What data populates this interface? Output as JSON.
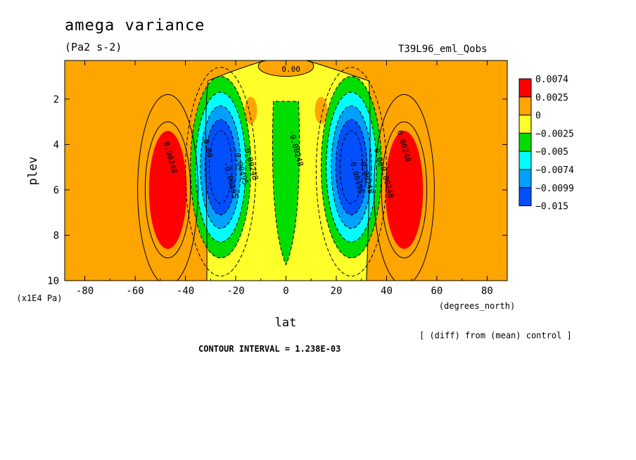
{
  "header": {
    "title": "amega variance",
    "units": "(Pa2 s-2)",
    "run_name": "T39L96_eml_Qobs"
  },
  "footer": {
    "diff_note": "[ (diff) from (mean) control ]",
    "contour_interval": "CONTOUR INTERVAL = 1.238E-03"
  },
  "chart_data": {
    "type": "heatmap",
    "title": "amega variance",
    "subtitle": "(Pa2 s-2)",
    "xlabel": "lat",
    "x_unit": "(degrees_north)",
    "ylabel": "plev",
    "y_unit": "(x1E4 Pa)",
    "xlim": [
      -88,
      88
    ],
    "ylim": [
      10,
      0.3
    ],
    "x_ticks": [
      -80,
      -60,
      -40,
      -20,
      0,
      20,
      40,
      60,
      80
    ],
    "y_ticks": [
      2,
      4,
      6,
      8,
      10
    ],
    "legend": {
      "placement": "right",
      "labels": [
        "0.0074",
        "0.0025",
        "0",
        "-0.0025",
        "-0.005",
        "-0.0074",
        "-0.0099",
        "-0.015"
      ],
      "colors": [
        "#ff0000",
        "#ffa500",
        "#ffff2a",
        "#00dd00",
        "#00ffff",
        "#00a0ff",
        "#0050ff"
      ]
    },
    "regions": [
      {
        "name": "background",
        "value_range": "0 to 0.0025",
        "color": "#ffa500"
      },
      {
        "name": "midlatitude-band",
        "value_range": "-0.0025 to 0",
        "color": "#ffff2a"
      },
      {
        "name": "sh-positive-max",
        "center": [
          -47,
          6
        ],
        "value_range": "> 0.0025",
        "color": "#ff0000"
      },
      {
        "name": "nh-positive-max",
        "center": [
          47,
          6
        ],
        "value_range": "> 0.0025",
        "color": "#ff0000"
      },
      {
        "name": "sh-negative-min",
        "center": [
          -26,
          5
        ],
        "value_range": "< -0.0099",
        "color": "#0050ff"
      },
      {
        "name": "nh-negative-min",
        "center": [
          26,
          5
        ],
        "value_range": "< -0.0099",
        "color": "#0050ff"
      },
      {
        "name": "equatorial-negative",
        "center": [
          0,
          5
        ],
        "value_range": "-0.005 to -0.0025",
        "color": "#00dd00"
      }
    ],
    "contour_labels": [
      {
        "text": "0.00",
        "lat": 2,
        "plev": 0.8
      },
      {
        "text": "-0.00248",
        "lat": 3,
        "plev": 4.2
      },
      {
        "text": "0.00",
        "lat": -32,
        "plev": 4.2
      },
      {
        "text": "0.00248",
        "lat": -47,
        "plev": 4.6
      },
      {
        "text": "-0.00495",
        "lat": -19,
        "plev": 5.0
      },
      {
        "text": "-0.00248",
        "lat": -15,
        "plev": 4.8
      },
      {
        "text": "-0.00495",
        "lat": -23,
        "plev": 5.6
      },
      {
        "text": "0.00248",
        "lat": 46,
        "plev": 4.1
      },
      {
        "text": "0.00",
        "lat": 36,
        "plev": 4.6
      },
      {
        "text": "-0.00248",
        "lat": 31,
        "plev": 5.4
      },
      {
        "text": "-0.00495",
        "lat": 27,
        "plev": 5.4
      },
      {
        "text": "-0.00248",
        "lat": 39,
        "plev": 5.6
      }
    ],
    "contour_interval": 0.001238
  }
}
